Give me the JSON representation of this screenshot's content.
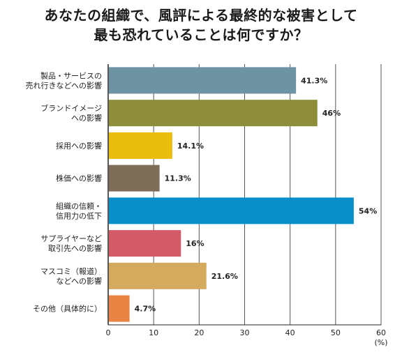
{
  "title_line1": "あなたの組織で、風評による最終的な被害として",
  "title_line2": "最も恐れていることは何ですか？",
  "chart_data": {
    "type": "bar",
    "orientation": "horizontal",
    "categories": [
      [
        "製品・サービスの",
        "売れ行きなどへの影響"
      ],
      [
        "ブランドイメージ",
        "への影響"
      ],
      [
        "採用への影響"
      ],
      [
        "株価への影響"
      ],
      [
        "組織の信頼・",
        "信用力の低下"
      ],
      [
        "サプライヤーなど",
        "取引先への影響"
      ],
      [
        "マスコミ（報道）",
        "などへの影響"
      ],
      [
        "その他（具体的に）"
      ]
    ],
    "values": [
      41.3,
      46,
      14.1,
      11.3,
      54,
      16,
      21.6,
      4.7
    ],
    "value_labels": [
      "41.3%",
      "46%",
      "14.1%",
      "11.3%",
      "54%",
      "16%",
      "21.6%",
      "4.7%"
    ],
    "colors": [
      "#6e93a3",
      "#8d8d3a",
      "#e9be0d",
      "#7d6d59",
      "#0a8ec9",
      "#d55a68",
      "#d4ab5e",
      "#ea8444"
    ],
    "xlim": [
      0,
      60
    ],
    "xticks": [
      0,
      10,
      20,
      30,
      40,
      50,
      60
    ],
    "xunit": "(%)",
    "grid": true
  }
}
